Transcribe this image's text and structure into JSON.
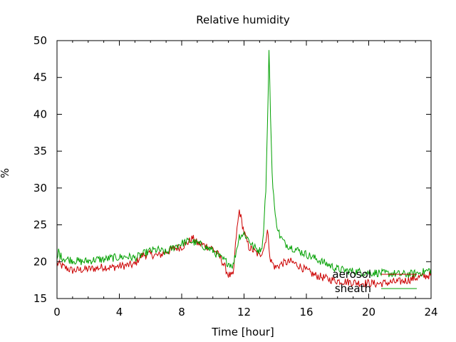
{
  "chart_data": {
    "type": "line",
    "title": "Relative humidity",
    "xlabel": "Time [hour]",
    "ylabel": "%",
    "xlim": [
      0,
      24
    ],
    "ylim": [
      15,
      50
    ],
    "xticks": [
      0,
      4,
      8,
      12,
      16,
      20,
      24
    ],
    "yticks": [
      15,
      20,
      25,
      30,
      35,
      40,
      45,
      50
    ],
    "grid": false,
    "legend_position": "bottom-right",
    "series": [
      {
        "name": "aerosol",
        "color": "#cc0000",
        "x": [
          0,
          0.5,
          1,
          1.5,
          2,
          2.5,
          3,
          3.5,
          4,
          4.5,
          5,
          5.2,
          5.5,
          6,
          6.5,
          7,
          7.5,
          8,
          8.5,
          8.7,
          9,
          9.5,
          10,
          10.5,
          11,
          11.3,
          11.5,
          11.7,
          12,
          12.3,
          12.6,
          13,
          13.3,
          13.5,
          13.7,
          14,
          14.5,
          15,
          15.5,
          16,
          16.5,
          17,
          17.5,
          18,
          18.5,
          19,
          19.5,
          20,
          20.5,
          21,
          21.5,
          22,
          22.5,
          23,
          23.5,
          24
        ],
        "y": [
          19.8,
          19.2,
          18.8,
          18.9,
          19.0,
          19.1,
          19.3,
          19.2,
          19.4,
          19.5,
          19.6,
          20.3,
          20.9,
          21.0,
          20.8,
          21.3,
          21.8,
          22.0,
          22.8,
          23.2,
          22.5,
          22.2,
          21.8,
          20.5,
          18.2,
          18.0,
          23.5,
          27.0,
          24.0,
          22.0,
          21.5,
          20.8,
          22.0,
          24.2,
          20.2,
          19.2,
          19.8,
          20.0,
          19.5,
          18.8,
          18.2,
          17.9,
          17.6,
          17.4,
          17.3,
          17.2,
          17.1,
          17.1,
          17.0,
          17.1,
          17.2,
          17.3,
          17.5,
          17.8,
          18.0,
          18.2
        ]
      },
      {
        "name": "sheath",
        "color": "#00a000",
        "x": [
          0,
          0.1,
          0.2,
          0.5,
          1,
          1.5,
          2,
          2.5,
          3,
          3.5,
          4,
          4.5,
          5,
          5.5,
          6,
          6.5,
          7,
          7.5,
          8,
          8.5,
          9,
          9.5,
          10,
          10.5,
          11,
          11.3,
          11.5,
          11.7,
          12,
          12.3,
          12.6,
          13,
          13.2,
          13.4,
          13.5,
          13.6,
          13.7,
          13.8,
          14,
          14.3,
          14.6,
          15,
          15.5,
          16,
          16.5,
          17,
          17.5,
          18,
          18.5,
          19,
          19.5,
          20,
          20.5,
          21,
          21.5,
          22,
          22.5,
          23,
          23.5,
          24
        ],
        "y": [
          20.0,
          21.5,
          20.8,
          20.4,
          20.2,
          20.0,
          20.1,
          20.3,
          20.3,
          20.5,
          20.6,
          20.7,
          20.5,
          21.0,
          21.5,
          21.6,
          21.2,
          22.0,
          22.5,
          22.8,
          22.5,
          22.0,
          21.5,
          20.5,
          19.8,
          19.5,
          21.5,
          23.5,
          23.8,
          23.0,
          22.0,
          21.5,
          22.5,
          30.0,
          38.0,
          48.5,
          40.0,
          32.0,
          26.0,
          23.5,
          22.5,
          22.0,
          21.5,
          21.0,
          20.5,
          20.0,
          19.5,
          19.0,
          18.8,
          18.7,
          18.6,
          18.5,
          18.5,
          18.4,
          18.4,
          18.3,
          18.3,
          18.4,
          18.6,
          18.9
        ]
      }
    ]
  }
}
